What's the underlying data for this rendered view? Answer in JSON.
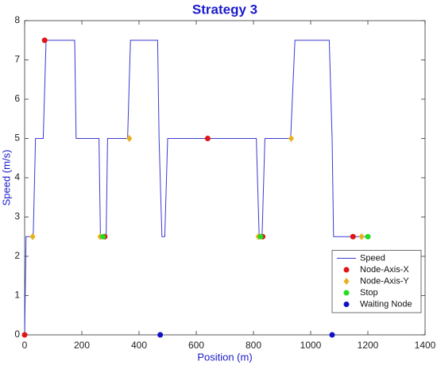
{
  "chart_data": {
    "type": "line",
    "title": "Strategy 3",
    "x_label": "Position (m)",
    "y_label": "Speed (m/s)",
    "xlim": [
      0,
      1400
    ],
    "ylim": [
      0,
      8
    ],
    "xticks": [
      0,
      200,
      400,
      600,
      800,
      1000,
      1200,
      1400
    ],
    "yticks": [
      0,
      1,
      2,
      3,
      4,
      5,
      6,
      7,
      8
    ],
    "legend": "lower right",
    "series": [
      {
        "name": "Speed",
        "color": "#3a3ad0",
        "marker": "line",
        "x": [
          0,
          5,
          30,
          38,
          65,
          75,
          175,
          180,
          260,
          265,
          285,
          290,
          360,
          370,
          465,
          470,
          480,
          490,
          500,
          810,
          820,
          830,
          840,
          930,
          945,
          1065,
          1075,
          1080,
          1200
        ],
        "values": [
          0,
          2.5,
          2.5,
          5,
          5,
          7.5,
          7.5,
          5,
          5,
          2.5,
          2.5,
          5,
          5,
          7.5,
          7.5,
          5,
          2.5,
          2.5,
          5,
          5,
          2.5,
          2.5,
          5,
          5,
          7.5,
          7.5,
          5,
          2.5,
          2.5
        ]
      },
      {
        "name": "Node-Axis-X",
        "color": "#e01515",
        "marker": "circle",
        "x": [
          0,
          70,
          280,
          640,
          832,
          1148
        ],
        "values": [
          0,
          7.5,
          2.5,
          5,
          2.5,
          2.5
        ]
      },
      {
        "name": "Node-Axis-Y",
        "color": "#e8b020",
        "marker": "diamond",
        "x": [
          28,
          264,
          366,
          817,
          932,
          1178
        ],
        "values": [
          2.5,
          2.5,
          5,
          2.5,
          5,
          2.5
        ]
      },
      {
        "name": "Stop",
        "color": "#22dd22",
        "marker": "circle",
        "x": [
          274,
          825,
          1200
        ],
        "values": [
          2.5,
          2.5,
          2.5
        ]
      },
      {
        "name": "Waiting Node",
        "color": "#1010c8",
        "marker": "circle",
        "x": [
          474,
          1075
        ],
        "values": [
          0,
          0
        ]
      }
    ]
  }
}
